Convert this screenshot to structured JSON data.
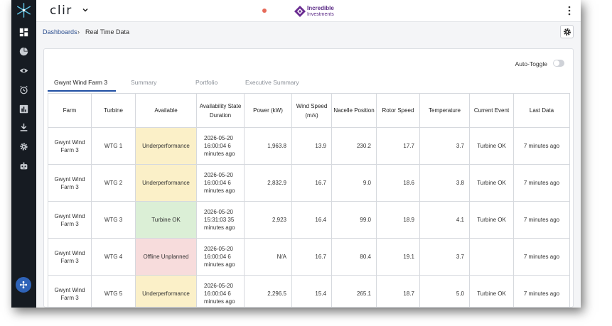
{
  "app": {
    "brand": "clir",
    "logo_line1": "Incredible",
    "logo_line2": "Investments"
  },
  "sidebar": {
    "items": [
      {
        "name": "dashboard-icon"
      },
      {
        "name": "pie-chart-icon"
      },
      {
        "name": "eye-icon"
      },
      {
        "name": "alarm-icon"
      },
      {
        "name": "bar-chart-icon"
      },
      {
        "name": "download-icon"
      },
      {
        "name": "gear-icon"
      },
      {
        "name": "robot-icon"
      }
    ]
  },
  "breadcrumb": {
    "parent": "Dashboards",
    "separator": "›",
    "current": "Real Time Data"
  },
  "auto_toggle": {
    "label": "Auto-Toggle",
    "on": false
  },
  "tabs": [
    {
      "label": "Gwynt Wind Farm 3",
      "active": true
    },
    {
      "label": "Summary",
      "active": false
    },
    {
      "label": "Portfolio",
      "active": false
    },
    {
      "label": "Executive Summary",
      "active": false
    }
  ],
  "table": {
    "headers": [
      "Farm",
      "Turbine",
      "Available",
      "Availability State Duration",
      "Power (kW)",
      "Wind Speed (m/s)",
      "Nacelle Position",
      "Rotor Speed",
      "Temperature",
      "Current Event",
      "Last Data"
    ],
    "rows": [
      {
        "farm": "Gwynt Wind Farm 3",
        "turbine": "WTG 1",
        "available": "Underperformance",
        "status": "under",
        "duration": "2026-05-20 16:00:04 6 minutes ago",
        "power": "1,963.8",
        "wind": "13.9",
        "nacelle": "230.2",
        "rotor": "17.7",
        "temp": "3.7",
        "event": "Turbine OK",
        "last": "7 minutes ago"
      },
      {
        "farm": "Gwynt Wind Farm 3",
        "turbine": "WTG 2",
        "available": "Underperformance",
        "status": "under",
        "duration": "2026-05-20 16:00:04 6 minutes ago",
        "power": "2,832.9",
        "wind": "16.7",
        "nacelle": "9.0",
        "rotor": "18.6",
        "temp": "3.8",
        "event": "Turbine OK",
        "last": "7 minutes ago"
      },
      {
        "farm": "Gwynt Wind Farm 3",
        "turbine": "WTG 3",
        "available": "Turbine OK",
        "status": "ok",
        "duration": "2026-05-20 15:31:03 35 minutes ago",
        "power": "2,923",
        "wind": "16.4",
        "nacelle": "99.0",
        "rotor": "18.9",
        "temp": "4.1",
        "event": "Turbine OK",
        "last": "7 minutes ago"
      },
      {
        "farm": "Gwynt Wind Farm 3",
        "turbine": "WTG 4",
        "available": "Offline Unplanned",
        "status": "off",
        "duration": "2026-05-20 16:00:04 6 minutes ago",
        "power": "N/A",
        "wind": "16.7",
        "nacelle": "80.4",
        "rotor": "19.1",
        "temp": "3.7",
        "event": "",
        "last": "7 minutes ago"
      },
      {
        "farm": "Gwynt Wind Farm 3",
        "turbine": "WTG 5",
        "available": "Underperformance",
        "status": "under",
        "duration": "2026-05-20 16:00:04 6 minutes ago",
        "power": "2,296.5",
        "wind": "15.4",
        "nacelle": "265.1",
        "rotor": "18.7",
        "temp": "5.0",
        "event": "Turbine OK",
        "last": "7 minutes ago"
      }
    ]
  }
}
